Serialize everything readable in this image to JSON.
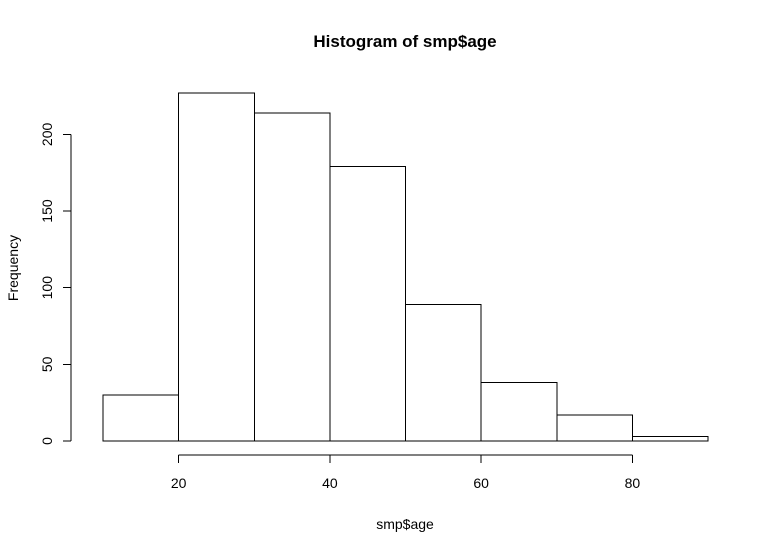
{
  "chart_data": {
    "type": "bar",
    "title": "Histogram of smp$age",
    "xlabel": "smp$age",
    "ylabel": "Frequency",
    "bins": [
      {
        "start": 10,
        "end": 20,
        "count": 30
      },
      {
        "start": 20,
        "end": 30,
        "count": 227
      },
      {
        "start": 30,
        "end": 40,
        "count": 214
      },
      {
        "start": 40,
        "end": 50,
        "count": 179
      },
      {
        "start": 50,
        "end": 60,
        "count": 89
      },
      {
        "start": 60,
        "end": 70,
        "count": 38
      },
      {
        "start": 70,
        "end": 80,
        "count": 17
      },
      {
        "start": 80,
        "end": 90,
        "count": 3
      }
    ],
    "xlim": [
      10,
      90
    ],
    "ylim": [
      0,
      227
    ],
    "x_ticks": [
      20,
      40,
      60,
      80
    ],
    "y_ticks": [
      0,
      50,
      100,
      150,
      200
    ],
    "bar_fill": "#ffffff",
    "bar_stroke": "#000000",
    "grid": false,
    "legend": false
  }
}
